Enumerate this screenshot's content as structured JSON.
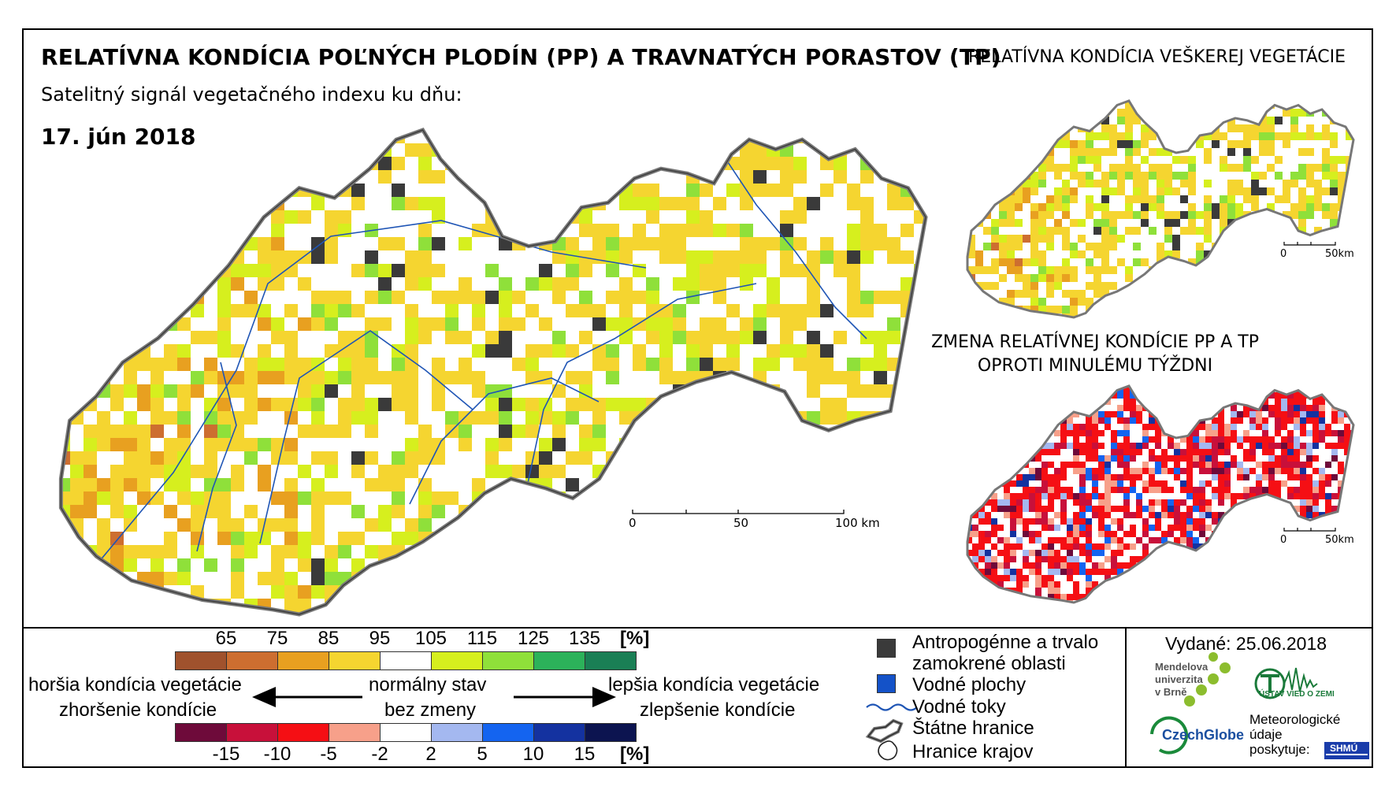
{
  "header": {
    "title": "RELATÍVNA KONDÍCIA POĽNÝCH PLODÍN (PP) A TRAVNATÝCH PORASTOV (TP)",
    "title_vegetation": "RELATÍVNA KONDÍCIA VEŠKEREJ VEGETÁCIE",
    "subtitle": "Satelitný signál vegetačného indexu ku dňu:",
    "date": "17. jún 2018",
    "change_title": "ZMENA RELATÍVNEJ KONDÍCIE PP A TP OPROTI MINULÉMU TÝŽDNI"
  },
  "main_scale": {
    "labels": [
      "0",
      "50",
      "100 km"
    ]
  },
  "small_scale": {
    "labels": [
      "0",
      "50km"
    ]
  },
  "legend_condition": {
    "ticks": [
      "65",
      "75",
      "85",
      "95",
      "105",
      "115",
      "125",
      "135"
    ],
    "unit": "[%]",
    "colors": [
      "#a0522d",
      "#cd6e30",
      "#e8a020",
      "#f5d530",
      "#ffffff",
      "#d6ef1e",
      "#8fe03a",
      "#2cb25a",
      "#1a7f55"
    ]
  },
  "legend_change": {
    "ticks": [
      "-15",
      "-10",
      "-5",
      "-2",
      "2",
      "5",
      "10",
      "15"
    ],
    "unit": "[%]",
    "colors": [
      "#6e0a3a",
      "#c8103a",
      "#f50f14",
      "#f7a08a",
      "#ffffff",
      "#a4b8f0",
      "#1464f0",
      "#1432a0",
      "#0c1450"
    ]
  },
  "legend_text": {
    "worse_condition": "horšia kondícia vegetácie",
    "worse_change": "zhoršenie kondície",
    "normal": "normálny stav",
    "no_change": "bez zmeny",
    "better_condition": "lepšia kondícia vegetácie",
    "better_change": "zlepšenie kondície"
  },
  "map_legend": {
    "anthropogenic_1": "Antropogénne a trvalo",
    "anthropogenic_2": "zamokrené oblasti",
    "water_bodies": "Vodné plochy",
    "rivers": "Vodné toky",
    "state_border": "Štátne hranice",
    "region_border": "Hranice krajov",
    "anthropogenic_color": "#3a3a3a",
    "water_color": "#1452c8",
    "river_color": "#1f55b5"
  },
  "footer": {
    "issued": "Vydané: 25.06.2018",
    "mendel_1": "Mendelova",
    "mendel_2": "univerzita",
    "mendel_3": "v Brně",
    "czechglobe": "CzechGlobe",
    "ustav": "ÚSTAV VIED O ZEMI",
    "meteo_1": "Meteorologické",
    "meteo_2": "údaje",
    "meteo_3": "poskytuje:",
    "shmu": "SHMÚ"
  }
}
